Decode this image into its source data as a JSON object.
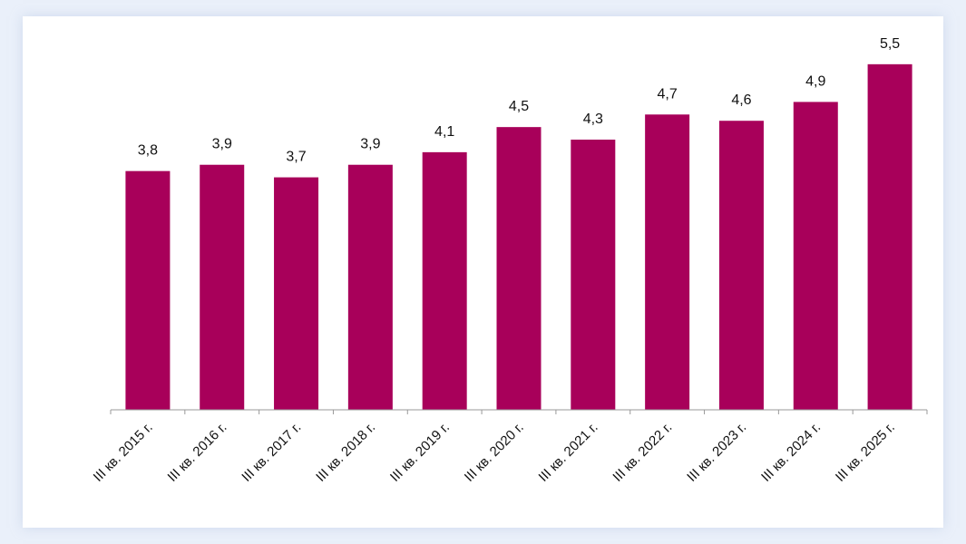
{
  "chart_data": {
    "type": "bar",
    "title": "",
    "xlabel": "",
    "ylabel": "",
    "ylim": [
      0,
      5.5
    ],
    "grid": false,
    "categories": [
      "III кв. 2015 г.",
      "III кв. 2016 г.",
      "III кв. 2017 г.",
      "III кв. 2018 г.",
      "III кв. 2019 г.",
      "III кв. 2020 г.",
      "III кв. 2021 г.",
      "III кв. 2022 г.",
      "III кв. 2023 г.",
      "III кв. 2024 г.",
      "III кв. 2025 г."
    ],
    "values": [
      3.8,
      3.9,
      3.7,
      3.9,
      4.1,
      4.5,
      4.3,
      4.7,
      4.6,
      4.9,
      5.5
    ],
    "value_labels": [
      "3,8",
      "3,9",
      "3,7",
      "3,9",
      "4,1",
      "4,5",
      "4,3",
      "4,7",
      "4,6",
      "4,9",
      "5,5"
    ],
    "bar_color": "#a8005a"
  }
}
